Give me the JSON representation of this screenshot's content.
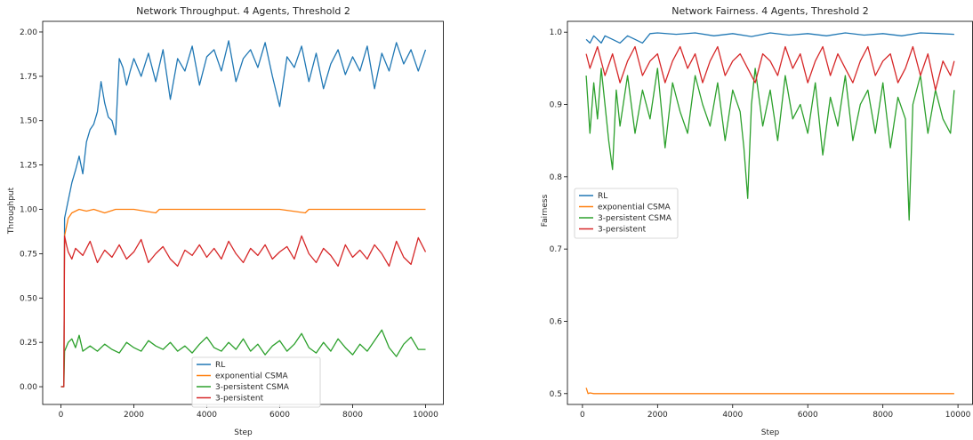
{
  "chart_data": [
    {
      "type": "line",
      "title": "Network Throughput. 4 Agents, Threshold 2",
      "xlabel": "Step",
      "ylabel": "Throughput",
      "xlim": [
        -500,
        10500
      ],
      "ylim": [
        -0.1,
        2.06
      ],
      "xticks": [
        "0",
        "2000",
        "4000",
        "6000",
        "8000",
        "10000"
      ],
      "xtick_values": [
        0,
        2000,
        4000,
        6000,
        8000,
        10000
      ],
      "yticks": [
        "0.00",
        "0.25",
        "0.50",
        "0.75",
        "1.00",
        "1.25",
        "1.50",
        "1.75",
        "2.00"
      ],
      "ytick_values": [
        0,
        0.25,
        0.5,
        0.75,
        1.0,
        1.25,
        1.5,
        1.75,
        2.0
      ],
      "grid": false,
      "legend": "lower center",
      "series": [
        {
          "name": "RL",
          "color": "#1f77b4",
          "x": [
            0,
            80,
            100,
            200,
            300,
            400,
            500,
            600,
            700,
            800,
            900,
            1000,
            1100,
            1200,
            1300,
            1400,
            1500,
            1600,
            1700,
            1800,
            1900,
            2000,
            2200,
            2400,
            2600,
            2800,
            3000,
            3200,
            3400,
            3600,
            3800,
            4000,
            4200,
            4400,
            4600,
            4800,
            5000,
            5200,
            5400,
            5600,
            5800,
            6000,
            6200,
            6400,
            6600,
            6800,
            7000,
            7200,
            7400,
            7600,
            7800,
            8000,
            8200,
            8400,
            8600,
            8800,
            9000,
            9200,
            9400,
            9600,
            9800,
            10000
          ],
          "y": [
            0,
            0,
            0.95,
            1.05,
            1.15,
            1.22,
            1.3,
            1.2,
            1.38,
            1.45,
            1.48,
            1.55,
            1.72,
            1.6,
            1.52,
            1.5,
            1.42,
            1.85,
            1.8,
            1.7,
            1.78,
            1.85,
            1.75,
            1.88,
            1.72,
            1.9,
            1.62,
            1.85,
            1.78,
            1.92,
            1.7,
            1.86,
            1.9,
            1.78,
            1.95,
            1.72,
            1.85,
            1.9,
            1.8,
            1.94,
            1.75,
            1.58,
            1.86,
            1.8,
            1.92,
            1.72,
            1.88,
            1.68,
            1.82,
            1.9,
            1.76,
            1.86,
            1.78,
            1.92,
            1.68,
            1.88,
            1.78,
            1.94,
            1.82,
            1.9,
            1.78,
            1.9
          ]
        },
        {
          "name": "exponential CSMA",
          "color": "#ff7f0e",
          "x": [
            0,
            80,
            100,
            200,
            300,
            400,
            500,
            700,
            900,
            1200,
            1500,
            2000,
            2600,
            2700,
            3000,
            4000,
            5000,
            6000,
            6700,
            6800,
            7000,
            8000,
            9000,
            10000
          ],
          "y": [
            0,
            0,
            0.85,
            0.95,
            0.98,
            0.99,
            1.0,
            0.99,
            1.0,
            0.98,
            1.0,
            1.0,
            0.98,
            1.0,
            1.0,
            1.0,
            1.0,
            1.0,
            0.98,
            1.0,
            1.0,
            1.0,
            1.0,
            1.0
          ]
        },
        {
          "name": "3-persistent CSMA",
          "color": "#2ca02c",
          "x": [
            0,
            80,
            100,
            200,
            300,
            400,
            500,
            600,
            800,
            1000,
            1200,
            1400,
            1600,
            1800,
            2000,
            2200,
            2400,
            2600,
            2800,
            3000,
            3200,
            3400,
            3600,
            3800,
            4000,
            4200,
            4400,
            4600,
            4800,
            5000,
            5200,
            5400,
            5600,
            5800,
            6000,
            6200,
            6400,
            6600,
            6800,
            7000,
            7200,
            7400,
            7600,
            7800,
            8000,
            8200,
            8400,
            8600,
            8800,
            9000,
            9200,
            9400,
            9600,
            9800,
            10000
          ],
          "y": [
            0,
            0,
            0.2,
            0.25,
            0.27,
            0.22,
            0.29,
            0.2,
            0.23,
            0.2,
            0.24,
            0.21,
            0.19,
            0.25,
            0.22,
            0.2,
            0.26,
            0.23,
            0.21,
            0.25,
            0.2,
            0.23,
            0.19,
            0.24,
            0.28,
            0.22,
            0.2,
            0.25,
            0.21,
            0.27,
            0.2,
            0.24,
            0.18,
            0.23,
            0.26,
            0.2,
            0.24,
            0.3,
            0.22,
            0.19,
            0.25,
            0.2,
            0.27,
            0.22,
            0.18,
            0.24,
            0.2,
            0.26,
            0.32,
            0.22,
            0.17,
            0.24,
            0.28,
            0.21,
            0.21
          ]
        },
        {
          "name": "3-persistent",
          "color": "#d62728",
          "x": [
            0,
            80,
            100,
            150,
            200,
            300,
            400,
            600,
            800,
            1000,
            1200,
            1400,
            1600,
            1800,
            2000,
            2200,
            2400,
            2600,
            2800,
            3000,
            3200,
            3400,
            3600,
            3800,
            4000,
            4200,
            4400,
            4600,
            4800,
            5000,
            5200,
            5400,
            5600,
            5800,
            6000,
            6200,
            6400,
            6600,
            6800,
            7000,
            7200,
            7400,
            7600,
            7800,
            8000,
            8200,
            8400,
            8600,
            8800,
            9000,
            9200,
            9400,
            9600,
            9800,
            10000
          ],
          "y": [
            0,
            0,
            0.85,
            0.8,
            0.76,
            0.72,
            0.78,
            0.74,
            0.82,
            0.7,
            0.77,
            0.73,
            0.8,
            0.72,
            0.76,
            0.83,
            0.7,
            0.75,
            0.79,
            0.72,
            0.68,
            0.77,
            0.74,
            0.8,
            0.73,
            0.78,
            0.72,
            0.82,
            0.75,
            0.7,
            0.78,
            0.74,
            0.8,
            0.72,
            0.76,
            0.79,
            0.72,
            0.85,
            0.75,
            0.7,
            0.78,
            0.74,
            0.68,
            0.8,
            0.73,
            0.77,
            0.72,
            0.8,
            0.75,
            0.68,
            0.82,
            0.73,
            0.69,
            0.84,
            0.76
          ]
        }
      ],
      "legend_entries": [
        "RL",
        "exponential CSMA",
        "3-persistent CSMA",
        "3-persistent"
      ]
    },
    {
      "type": "line",
      "title": "Network Fairness. 4 Agents, Threshold 2",
      "xlabel": "Step",
      "ylabel": "Fairness",
      "xlim": [
        -400,
        10400
      ],
      "ylim": [
        0.485,
        1.015
      ],
      "xticks": [
        "0",
        "2000",
        "4000",
        "6000",
        "8000",
        "10000"
      ],
      "xtick_values": [
        0,
        2000,
        4000,
        6000,
        8000,
        10000
      ],
      "yticks": [
        "0.5",
        "0.6",
        "0.7",
        "0.8",
        "0.9",
        "1.0"
      ],
      "ytick_values": [
        0.5,
        0.6,
        0.7,
        0.8,
        0.9,
        1.0
      ],
      "grid": false,
      "legend": "center left",
      "series": [
        {
          "name": "RL",
          "color": "#1f77b4",
          "x": [
            100,
            200,
            300,
            400,
            500,
            600,
            800,
            1000,
            1200,
            1400,
            1600,
            1800,
            2000,
            2500,
            3000,
            3500,
            4000,
            4500,
            5000,
            5500,
            6000,
            6500,
            7000,
            7500,
            8000,
            8500,
            9000,
            9500,
            9900
          ],
          "y": [
            0.99,
            0.985,
            0.995,
            0.99,
            0.985,
            0.995,
            0.99,
            0.985,
            0.995,
            0.99,
            0.985,
            0.998,
            0.999,
            0.997,
            0.999,
            0.995,
            0.998,
            0.994,
            0.999,
            0.996,
            0.998,
            0.995,
            0.999,
            0.996,
            0.998,
            0.995,
            0.999,
            0.998,
            0.997
          ]
        },
        {
          "name": "exponential CSMA",
          "color": "#ff7f0e",
          "x": [
            100,
            150,
            200,
            300,
            1000,
            2000,
            4000,
            6000,
            8000,
            9900
          ],
          "y": [
            0.508,
            0.5,
            0.501,
            0.5,
            0.5,
            0.5,
            0.5,
            0.5,
            0.5,
            0.5
          ]
        },
        {
          "name": "3-persistent CSMA",
          "color": "#2ca02c",
          "x": [
            100,
            200,
            300,
            400,
            500,
            600,
            700,
            800,
            900,
            1000,
            1200,
            1400,
            1600,
            1800,
            2000,
            2200,
            2400,
            2600,
            2800,
            3000,
            3200,
            3400,
            3600,
            3800,
            4000,
            4200,
            4300,
            4400,
            4500,
            4600,
            4800,
            5000,
            5200,
            5400,
            5600,
            5800,
            6000,
            6200,
            6400,
            6600,
            6800,
            7000,
            7200,
            7400,
            7600,
            7800,
            8000,
            8200,
            8400,
            8600,
            8700,
            8800,
            9000,
            9200,
            9400,
            9600,
            9800,
            9900
          ],
          "y": [
            0.94,
            0.86,
            0.93,
            0.88,
            0.95,
            0.9,
            0.85,
            0.81,
            0.92,
            0.87,
            0.94,
            0.86,
            0.92,
            0.88,
            0.95,
            0.84,
            0.93,
            0.89,
            0.86,
            0.94,
            0.9,
            0.87,
            0.93,
            0.85,
            0.92,
            0.89,
            0.84,
            0.77,
            0.9,
            0.95,
            0.87,
            0.92,
            0.85,
            0.94,
            0.88,
            0.9,
            0.86,
            0.93,
            0.83,
            0.91,
            0.87,
            0.94,
            0.85,
            0.9,
            0.92,
            0.86,
            0.93,
            0.84,
            0.91,
            0.88,
            0.74,
            0.9,
            0.94,
            0.86,
            0.92,
            0.88,
            0.86,
            0.92
          ]
        },
        {
          "name": "3-persistent",
          "color": "#d62728",
          "x": [
            100,
            200,
            400,
            600,
            800,
            1000,
            1200,
            1400,
            1600,
            1800,
            2000,
            2200,
            2400,
            2600,
            2800,
            3000,
            3200,
            3400,
            3600,
            3800,
            4000,
            4200,
            4400,
            4600,
            4800,
            5000,
            5200,
            5400,
            5600,
            5800,
            6000,
            6200,
            6400,
            6600,
            6800,
            7000,
            7200,
            7400,
            7600,
            7800,
            8000,
            8200,
            8400,
            8600,
            8800,
            9000,
            9200,
            9400,
            9600,
            9800,
            9900
          ],
          "y": [
            0.97,
            0.95,
            0.98,
            0.94,
            0.97,
            0.93,
            0.96,
            0.98,
            0.94,
            0.96,
            0.97,
            0.93,
            0.96,
            0.98,
            0.95,
            0.97,
            0.93,
            0.96,
            0.98,
            0.94,
            0.96,
            0.97,
            0.95,
            0.93,
            0.97,
            0.96,
            0.94,
            0.98,
            0.95,
            0.97,
            0.93,
            0.96,
            0.98,
            0.94,
            0.97,
            0.95,
            0.93,
            0.96,
            0.98,
            0.94,
            0.96,
            0.97,
            0.93,
            0.95,
            0.98,
            0.94,
            0.97,
            0.92,
            0.96,
            0.94,
            0.96
          ]
        }
      ],
      "legend_entries": [
        "RL",
        "exponential CSMA",
        "3-persistent CSMA",
        "3-persistent"
      ]
    }
  ]
}
